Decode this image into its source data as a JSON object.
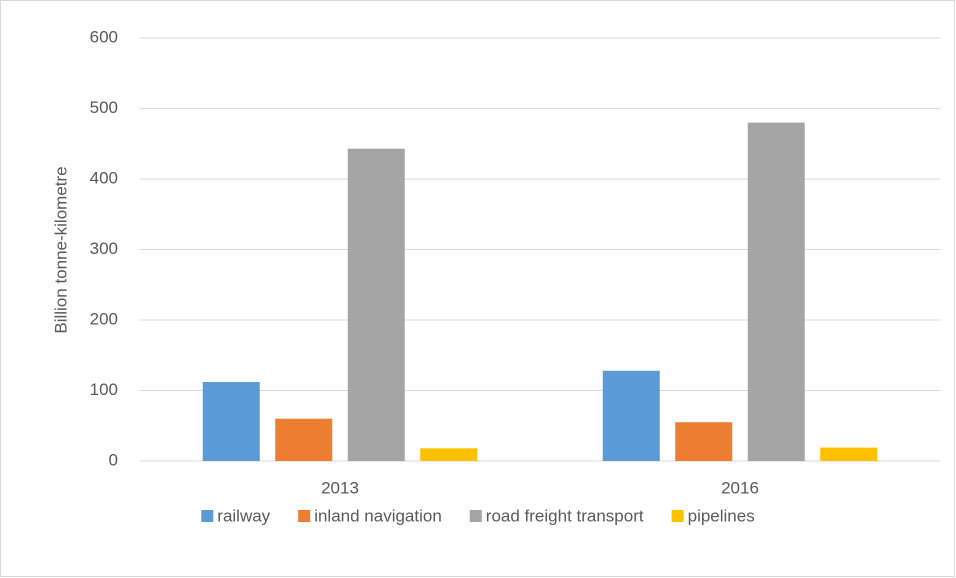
{
  "chart_data": {
    "type": "bar",
    "y_label": "Billion tonne-kilometre",
    "categories": [
      "2013",
      "2016"
    ],
    "series": [
      {
        "name": "railway",
        "color": "#5b9bd5",
        "values": [
          112,
          128
        ]
      },
      {
        "name": "inland navigation",
        "color": "#ed7d31",
        "values": [
          60,
          55
        ]
      },
      {
        "name": "road freight transport",
        "color": "#a5a5a5",
        "values": [
          443,
          480
        ]
      },
      {
        "name": "pipelines",
        "color": "#ffc000",
        "values": [
          18,
          19
        ]
      }
    ],
    "ylim": [
      0,
      600
    ],
    "yticks": [
      0,
      100,
      200,
      300,
      400,
      500,
      600
    ],
    "grid": true,
    "legend": "bottom"
  }
}
